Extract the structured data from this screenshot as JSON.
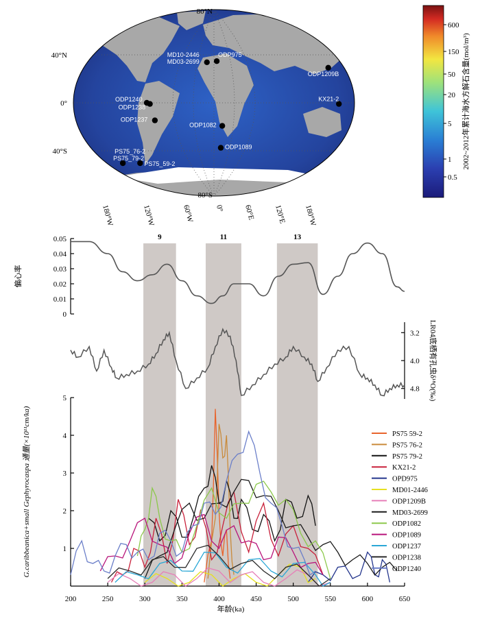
{
  "map": {
    "colorbar_label": "2002~2012年累计海水方解石含量(mol/m³)",
    "colorbar_ticks": [
      "600",
      "150",
      "50",
      "20",
      "5",
      "1",
      "0.5"
    ],
    "lat_labels": [
      "80°N",
      "40°N",
      "0°",
      "40°S",
      "80°S"
    ],
    "lon_labels": [
      "180°W",
      "120°W",
      "60°W",
      "0°",
      "60°E",
      "120°E",
      "180°W"
    ],
    "sites": [
      {
        "name": "MD10-2446",
        "lon": -10,
        "lat": 37
      },
      {
        "name": "MD03-2699",
        "lon": -10,
        "lat": 37
      },
      {
        "name": "ODP975",
        "lon": 4,
        "lat": 38
      },
      {
        "name": "ODP1209B",
        "lon": 158,
        "lat": 32
      },
      {
        "name": "KX21-2",
        "lon": 160,
        "lat": -1
      },
      {
        "name": "ODP1240",
        "lon": -86,
        "lat": 0
      },
      {
        "name": "ODP1238",
        "lon": -82,
        "lat": -1
      },
      {
        "name": "ODP1237",
        "lon": -77,
        "lat": -16
      },
      {
        "name": "ODP1082",
        "lon": 11,
        "lat": -21
      },
      {
        "name": "ODP1089",
        "lon": 10,
        "lat": -41
      },
      {
        "name": "PS75_76-2",
        "lon": -153,
        "lat": -55
      },
      {
        "name": "PS75_79-2",
        "lon": -153,
        "lat": -55
      },
      {
        "name": "PS75_59-2",
        "lon": -124,
        "lat": -55
      }
    ]
  },
  "chart_data": [
    {
      "type": "line",
      "ylabel": "偏心率",
      "ylim": [
        0,
        0.05
      ],
      "yticks": [
        "0",
        "0.01",
        "0.02",
        "0.03",
        "0.04",
        "0.05"
      ],
      "x": [
        200,
        225,
        250,
        270,
        290,
        310,
        330,
        350,
        370,
        390,
        405,
        420,
        440,
        460,
        480,
        500,
        520,
        540,
        560,
        580,
        600,
        620,
        640,
        650
      ],
      "values": [
        0.048,
        0.048,
        0.04,
        0.028,
        0.022,
        0.026,
        0.033,
        0.022,
        0.012,
        0.007,
        0.012,
        0.02,
        0.02,
        0.012,
        0.025,
        0.033,
        0.034,
        0.013,
        0.025,
        0.04,
        0.047,
        0.04,
        0.018,
        0.015
      ]
    },
    {
      "type": "line",
      "ylabel": "LR04底栖有孔虫δ¹⁸O(‰)",
      "ylim": [
        5.1,
        2.9
      ],
      "yticks": [
        "3.2",
        "4.0",
        "4.8"
      ],
      "x": [
        200,
        210,
        225,
        235,
        245,
        255,
        262,
        275,
        290,
        305,
        315,
        325,
        333,
        342,
        355,
        370,
        385,
        395,
        405,
        415,
        423,
        430,
        445,
        460,
        475,
        490,
        500,
        515,
        525,
        533,
        545,
        560,
        575,
        590,
        600,
        610,
        620,
        630,
        640,
        650
      ],
      "values": [
        3.7,
        3.9,
        3.6,
        4.3,
        3.7,
        4.2,
        4.5,
        4.4,
        4.3,
        4.1,
        3.8,
        3.4,
        3.2,
        4.0,
        4.8,
        4.5,
        4.2,
        3.6,
        3.1,
        3.3,
        4.0,
        5.0,
        4.7,
        4.4,
        4.1,
        3.9,
        3.6,
        3.9,
        4.1,
        4.6,
        4.2,
        3.7,
        3.6,
        4.4,
        4.5,
        4.7,
        5.0,
        4.8,
        4.7,
        4.7
      ]
    },
    {
      "type": "line",
      "ylabel": "G.caribbeanica+small Gephyrocaspa 通量(×10¹¹cm/ka)",
      "xlabel": "年龄(ka)",
      "xlim": [
        200,
        650
      ],
      "xticks": [
        "200",
        "250",
        "300",
        "350",
        "400",
        "450",
        "500",
        "550",
        "600",
        "650"
      ],
      "ylim": [
        0,
        5
      ],
      "yticks": [
        "1",
        "2",
        "3",
        "4",
        "5"
      ],
      "shaded_intervals": [
        {
          "label": "9",
          "x0": 298,
          "x1": 342
        },
        {
          "label": "11",
          "x0": 382,
          "x1": 430
        },
        {
          "label": "13",
          "x0": 478,
          "x1": 533
        }
      ],
      "series": [
        {
          "name": "PS75 59-2",
          "color": "#e8632b",
          "x": [
            380,
            390,
            395,
            400,
            405,
            410,
            415
          ],
          "values": [
            0.1,
            1.2,
            4.7,
            2.0,
            0.8,
            1.5,
            0.2
          ]
        },
        {
          "name": "PS75 76-2",
          "color": "#c98a3a",
          "x": [
            385,
            395,
            400,
            405,
            410,
            415,
            420
          ],
          "values": [
            0.2,
            1.8,
            4.3,
            3.4,
            4.0,
            1.5,
            0.3
          ]
        },
        {
          "name": "PS75 79-2",
          "color": "#111111",
          "x": [
            305,
            320,
            335,
            350,
            365,
            380,
            390,
            400,
            410,
            420,
            430,
            445,
            460,
            475,
            490,
            505,
            520,
            530
          ],
          "values": [
            1.8,
            1.2,
            2.0,
            1.3,
            1.8,
            2.6,
            3.2,
            2.2,
            2.8,
            1.8,
            2.3,
            1.5,
            1.9,
            1.2,
            2.3,
            1.8,
            2.4,
            1.6
          ]
        },
        {
          "name": "KX21-2",
          "color": "#c8203a",
          "x": [
            255,
            270,
            285,
            300,
            315,
            330,
            345,
            360,
            375,
            390,
            405,
            420,
            440,
            460,
            480,
            500,
            520,
            540
          ],
          "values": [
            0.1,
            0.3,
            1.0,
            0.5,
            1.8,
            0.6,
            2.3,
            1.1,
            2.0,
            0.7,
            1.6,
            2.5,
            0.9,
            2.2,
            0.8,
            1.6,
            1.0,
            0.3
          ]
        },
        {
          "name": "OPD975",
          "color": "#23358c",
          "x": [
            520,
            540,
            560,
            580,
            600,
            610,
            620,
            630
          ],
          "values": [
            0.1,
            0.3,
            0.5,
            0.2,
            0.9,
            0.3,
            0.7,
            0.1
          ]
        },
        {
          "name": "MD01-2446",
          "color": "#e6e020",
          "x": [
            300,
            330,
            360,
            390,
            420,
            450,
            480,
            510,
            530
          ],
          "values": [
            0.1,
            0.2,
            0.1,
            0.3,
            0.2,
            0.1,
            0.3,
            0.5,
            0.2
          ]
        },
        {
          "name": "ODP1209B",
          "color": "#e67fb8",
          "x": [
            250,
            280,
            310,
            340,
            370,
            400,
            430,
            460,
            490,
            520,
            550
          ],
          "values": [
            0.1,
            0.2,
            0.1,
            0.3,
            0.2,
            0.4,
            0.3,
            0.1,
            0.2,
            0.3,
            0.1
          ]
        },
        {
          "name": "MD03-2699",
          "color": "#1a1a1a",
          "x": [
            300,
            320,
            340,
            360,
            380,
            400,
            420,
            440,
            460,
            480,
            500,
            520,
            540,
            560,
            580,
            600,
            620,
            640
          ],
          "values": [
            0.2,
            0.8,
            1.5,
            2.2,
            1.8,
            2.2,
            2.5,
            2.8,
            2.4,
            2.0,
            1.6,
            1.3,
            1.1,
            0.9,
            0.7,
            0.6,
            0.5,
            0.4
          ]
        },
        {
          "name": "ODP1082",
          "color": "#8cc84b",
          "x": [
            290,
            300,
            310,
            320,
            335,
            350,
            370,
            390,
            410,
            430,
            450,
            470,
            490,
            510,
            530,
            550
          ],
          "values": [
            0.8,
            1.5,
            2.6,
            1.8,
            1.2,
            0.9,
            1.6,
            2.6,
            1.8,
            2.2,
            2.7,
            2.5,
            2.3,
            1.4,
            1.2,
            0.2
          ]
        },
        {
          "name": "ODP1089",
          "color": "#b8137a",
          "x": [
            240,
            260,
            280,
            300,
            320,
            340,
            360,
            380,
            400,
            420,
            440,
            460,
            480,
            500,
            520,
            540
          ],
          "values": [
            0.4,
            0.8,
            1.2,
            1.8,
            1.1,
            0.6,
            1.4,
            1.9,
            1.0,
            1.6,
            1.2,
            0.7,
            1.3,
            0.9,
            0.6,
            0.3
          ]
        },
        {
          "name": "ODP1237",
          "color": "#2aa7d6",
          "x": [
            260,
            290,
            320,
            350,
            380,
            410,
            440,
            470,
            500,
            530,
            550
          ],
          "values": [
            0.1,
            0.3,
            0.6,
            0.4,
            0.9,
            0.5,
            0.7,
            0.4,
            0.6,
            0.3,
            0.1
          ]
        },
        {
          "name": "ODP1238",
          "color": "#2a2a2a",
          "x": [
            250,
            280,
            310,
            340,
            370,
            400,
            430,
            460,
            490,
            520,
            550
          ],
          "values": [
            0.2,
            0.4,
            0.7,
            0.5,
            1.0,
            0.8,
            0.6,
            0.4,
            0.5,
            0.3,
            0.2
          ]
        },
        {
          "name": "ODP1240",
          "color": "#6b7fc9",
          "x": [
            200,
            215,
            230,
            245,
            260,
            275,
            290,
            305,
            320,
            335,
            350,
            365,
            380,
            395,
            410,
            425,
            440,
            455,
            470,
            485,
            500,
            515,
            530
          ],
          "values": [
            0.3,
            1.2,
            0.6,
            0.4,
            0.8,
            1.1,
            0.9,
            0.7,
            1.4,
            1.2,
            0.9,
            1.6,
            2.2,
            1.9,
            2.8,
            3.5,
            4.1,
            3.0,
            2.2,
            1.6,
            1.0,
            0.7,
            0.4
          ]
        }
      ]
    }
  ]
}
